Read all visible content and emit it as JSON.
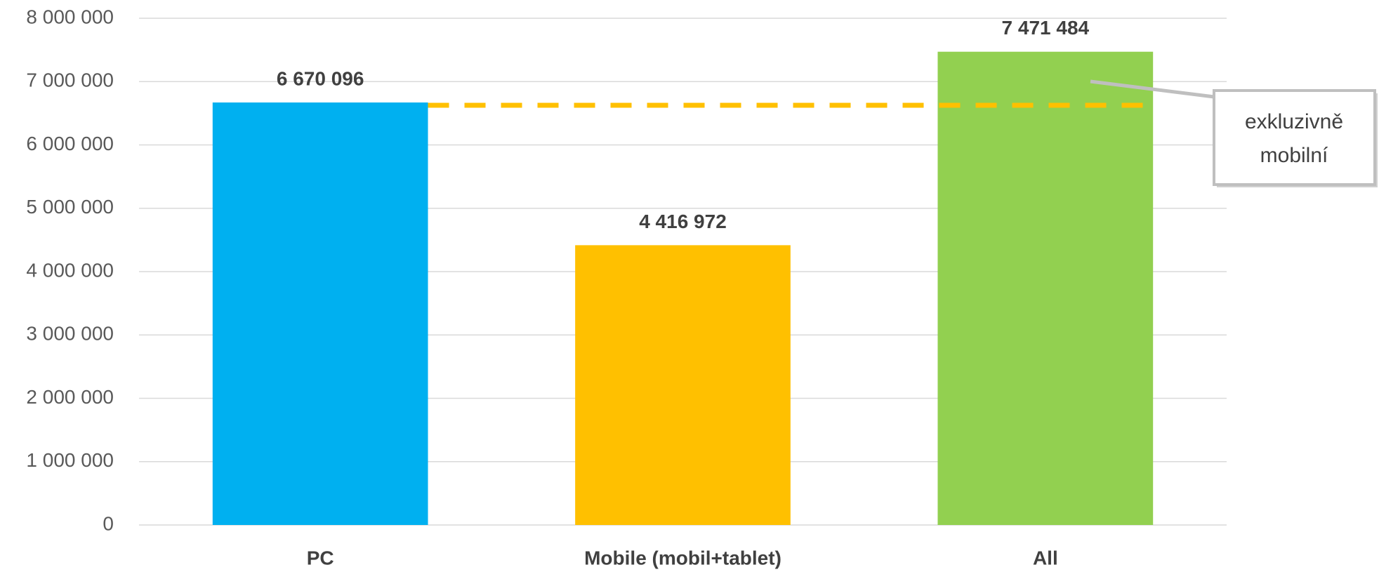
{
  "chart_data": {
    "type": "bar",
    "categories": [
      "PC",
      "Mobile (mobil+tablet)",
      "All"
    ],
    "values": [
      6670096,
      4416972,
      7471484
    ],
    "value_labels": [
      "6 670 096",
      "4 416 972",
      "7 471 484"
    ],
    "colors": [
      "#00b0f0",
      "#ffc000",
      "#92d050"
    ],
    "ylim": [
      0,
      8000000
    ],
    "yticks": [
      0,
      {
        "value": 1000000,
        "label": "1 000 000"
      },
      {
        "value": 2000000,
        "label": "2 000 000"
      },
      {
        "value": 3000000,
        "label": "3 000 000"
      },
      {
        "value": 4000000,
        "label": "4 000 000"
      },
      {
        "value": 5000000,
        "label": "5 000 000"
      },
      {
        "value": 6000000,
        "label": "6 000 000"
      },
      {
        "value": 7000000,
        "label": "7 000 000"
      },
      {
        "value": 8000000,
        "label": "8 000 000"
      }
    ],
    "grid": true,
    "annotation": [
      "exkluzivně",
      "mobilní"
    ]
  }
}
